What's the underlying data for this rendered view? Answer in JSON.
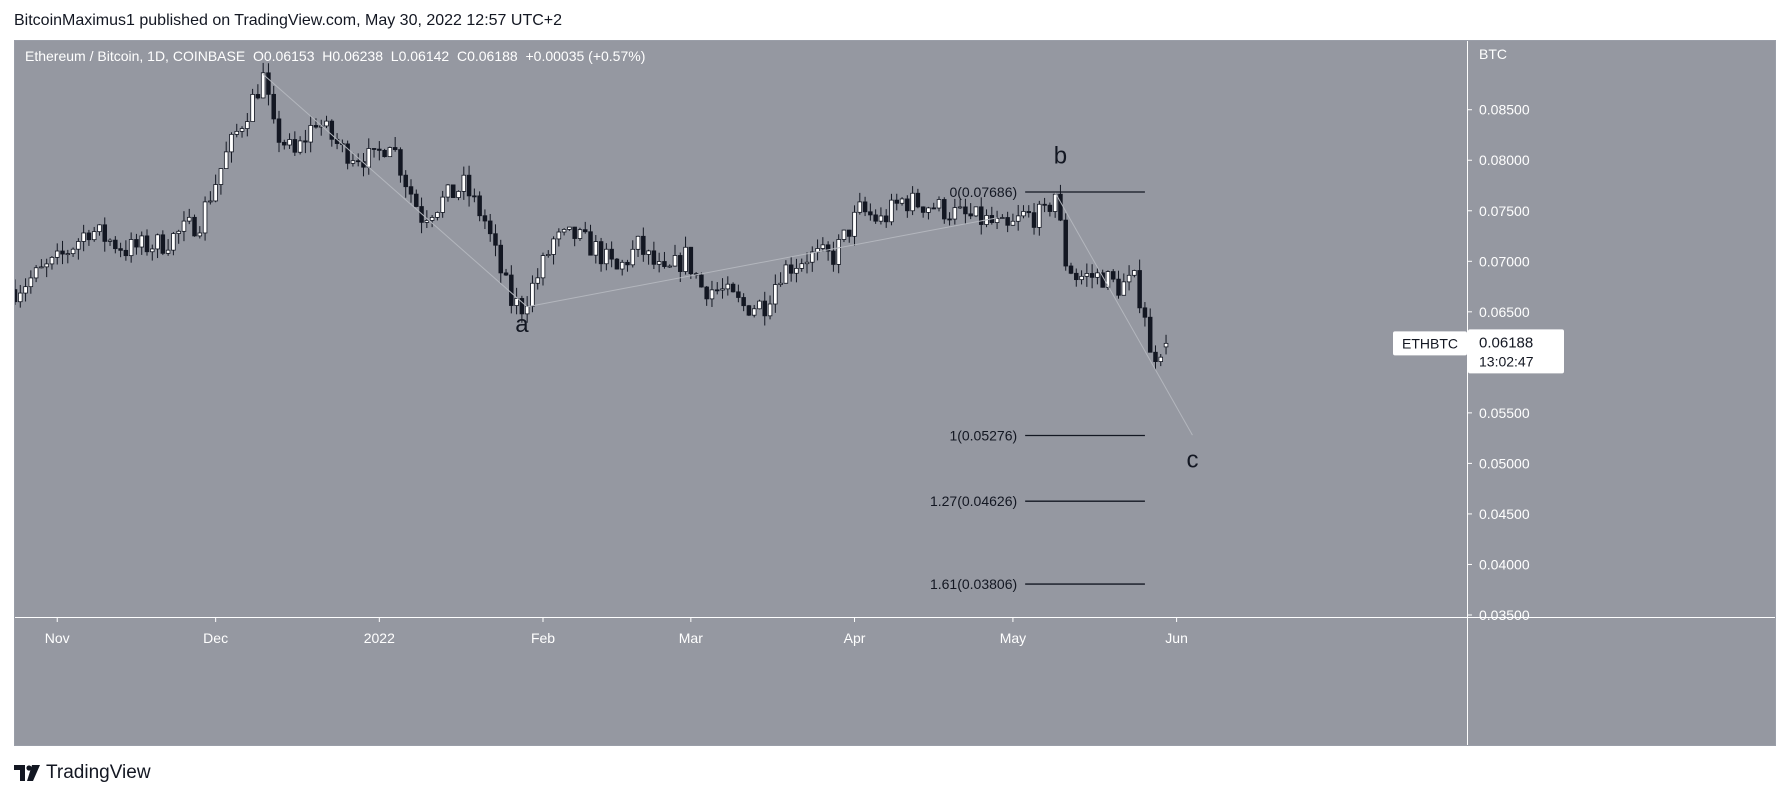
{
  "publisher": "BitcoinMaximus1 published on TradingView.com, May 30, 2022 12:57 UTC+2",
  "brand": "TradingView",
  "colors": {
    "background": "#9598a1",
    "axis_background": "#9598a1",
    "up_candle": "#ffffff",
    "down_candle": "#131722",
    "fib_line": "#131722",
    "wave_line": "#b3b6bd"
  },
  "chart_data": {
    "type": "candlestick",
    "symbol_header": {
      "title": "Ethereum / Bitcoin, 1D, COINBASE",
      "o_label": "O",
      "o_value": "0.06153",
      "h_label": "H",
      "h_value": "0.06238",
      "l_label": "L",
      "l_value": "0.06142",
      "c_label": "C",
      "c_value": "0.06188",
      "change": "+0.00035 (+0.57%)"
    },
    "axis_unit": "BTC",
    "ylim": [
      0.0348,
      0.0918
    ],
    "y_ticks": [
      "0.08500",
      "0.08000",
      "0.07500",
      "0.07000",
      "0.06500",
      "0.06000",
      "0.05500",
      "0.05000",
      "0.04500",
      "0.04000",
      "0.03500"
    ],
    "x_range": [
      "2021-10-24",
      "2022-07-26"
    ],
    "x_ticks": [
      {
        "date": "2021-11-01",
        "label": "Nov"
      },
      {
        "date": "2021-12-01",
        "label": "Dec"
      },
      {
        "date": "2022-01-01",
        "label": "2022"
      },
      {
        "date": "2022-02-01",
        "label": "Feb"
      },
      {
        "date": "2022-03-01",
        "label": "Mar"
      },
      {
        "date": "2022-04-01",
        "label": "Apr"
      },
      {
        "date": "2022-05-01",
        "label": "May"
      },
      {
        "date": "2022-06-01",
        "label": "Jun"
      }
    ],
    "price_tag": {
      "symbol": "ETHBTC",
      "price": "0.06188",
      "countdown": "13:02:47",
      "value": 0.06188
    },
    "close_path": [
      [
        "2021-10-24",
        0.0672
      ],
      [
        "2021-11-01",
        0.07
      ],
      [
        "2021-11-07",
        0.0732
      ],
      [
        "2021-11-14",
        0.0712
      ],
      [
        "2021-11-21",
        0.0718
      ],
      [
        "2021-11-28",
        0.074
      ],
      [
        "2021-12-03",
        0.0805
      ],
      [
        "2021-12-08",
        0.086
      ],
      [
        "2021-12-10",
        0.0882
      ],
      [
        "2021-12-12",
        0.083
      ],
      [
        "2021-12-16",
        0.0805
      ],
      [
        "2021-12-20",
        0.084
      ],
      [
        "2021-12-25",
        0.081
      ],
      [
        "2021-12-31",
        0.08
      ],
      [
        "2022-01-03",
        0.0822
      ],
      [
        "2022-01-06",
        0.078
      ],
      [
        "2022-01-09",
        0.0745
      ],
      [
        "2022-01-13",
        0.076
      ],
      [
        "2022-01-17",
        0.0775
      ],
      [
        "2022-01-21",
        0.074
      ],
      [
        "2022-01-24",
        0.069
      ],
      [
        "2022-01-26",
        0.066
      ],
      [
        "2022-01-28",
        0.0655
      ],
      [
        "2022-01-31",
        0.0685
      ],
      [
        "2022-02-03",
        0.072
      ],
      [
        "2022-02-07",
        0.0725
      ],
      [
        "2022-02-11",
        0.0712
      ],
      [
        "2022-02-15",
        0.069
      ],
      [
        "2022-02-19",
        0.0715
      ],
      [
        "2022-02-24",
        0.0685
      ],
      [
        "2022-02-28",
        0.0705
      ],
      [
        "2022-03-03",
        0.0675
      ],
      [
        "2022-03-07",
        0.067
      ],
      [
        "2022-03-11",
        0.0655
      ],
      [
        "2022-03-15",
        0.0658
      ],
      [
        "2022-03-18",
        0.069
      ],
      [
        "2022-03-23",
        0.0705
      ],
      [
        "2022-03-28",
        0.0705
      ],
      [
        "2022-04-02",
        0.075
      ],
      [
        "2022-04-06",
        0.074
      ],
      [
        "2022-04-10",
        0.076
      ],
      [
        "2022-04-16",
        0.0755
      ],
      [
        "2022-04-21",
        0.0745
      ],
      [
        "2022-04-26",
        0.074
      ],
      [
        "2022-04-30",
        0.073
      ],
      [
        "2022-05-03",
        0.0745
      ],
      [
        "2022-05-07",
        0.0745
      ],
      [
        "2022-05-09",
        0.0768
      ],
      [
        "2022-05-11",
        0.07
      ],
      [
        "2022-05-13",
        0.0685
      ],
      [
        "2022-05-18",
        0.0685
      ],
      [
        "2022-05-21",
        0.0675
      ],
      [
        "2022-05-24",
        0.068
      ],
      [
        "2022-05-26",
        0.065
      ],
      [
        "2022-05-27",
        0.0605
      ],
      [
        "2022-05-29",
        0.0615
      ],
      [
        "2022-05-30",
        0.06188
      ]
    ],
    "wave_lines": [
      [
        [
          "2021-12-10",
          0.0885
        ],
        [
          "2022-01-29",
          0.0655
        ]
      ],
      [
        [
          "2022-01-29",
          0.0655
        ],
        [
          "2022-04-28",
          0.0743
        ]
      ],
      [
        [
          "2022-05-09",
          0.0768
        ],
        [
          "2022-06-04",
          0.0528
        ]
      ]
    ],
    "fib_levels": [
      {
        "label": "0(0.07686)",
        "value": 0.07686
      },
      {
        "label": "1(0.05276)",
        "value": 0.05276
      },
      {
        "label": "1.27(0.04626)",
        "value": 0.04626
      },
      {
        "label": "1.61(0.03806)",
        "value": 0.03806
      }
    ],
    "fib_range": [
      "2022-05-09",
      "2022-05-26"
    ],
    "wave_labels": [
      {
        "text": "a",
        "date": "2022-01-28",
        "value": 0.063
      },
      {
        "text": "b",
        "date": "2022-05-10",
        "value": 0.0797
      },
      {
        "text": "c",
        "date": "2022-06-04",
        "value": 0.0496
      }
    ]
  }
}
